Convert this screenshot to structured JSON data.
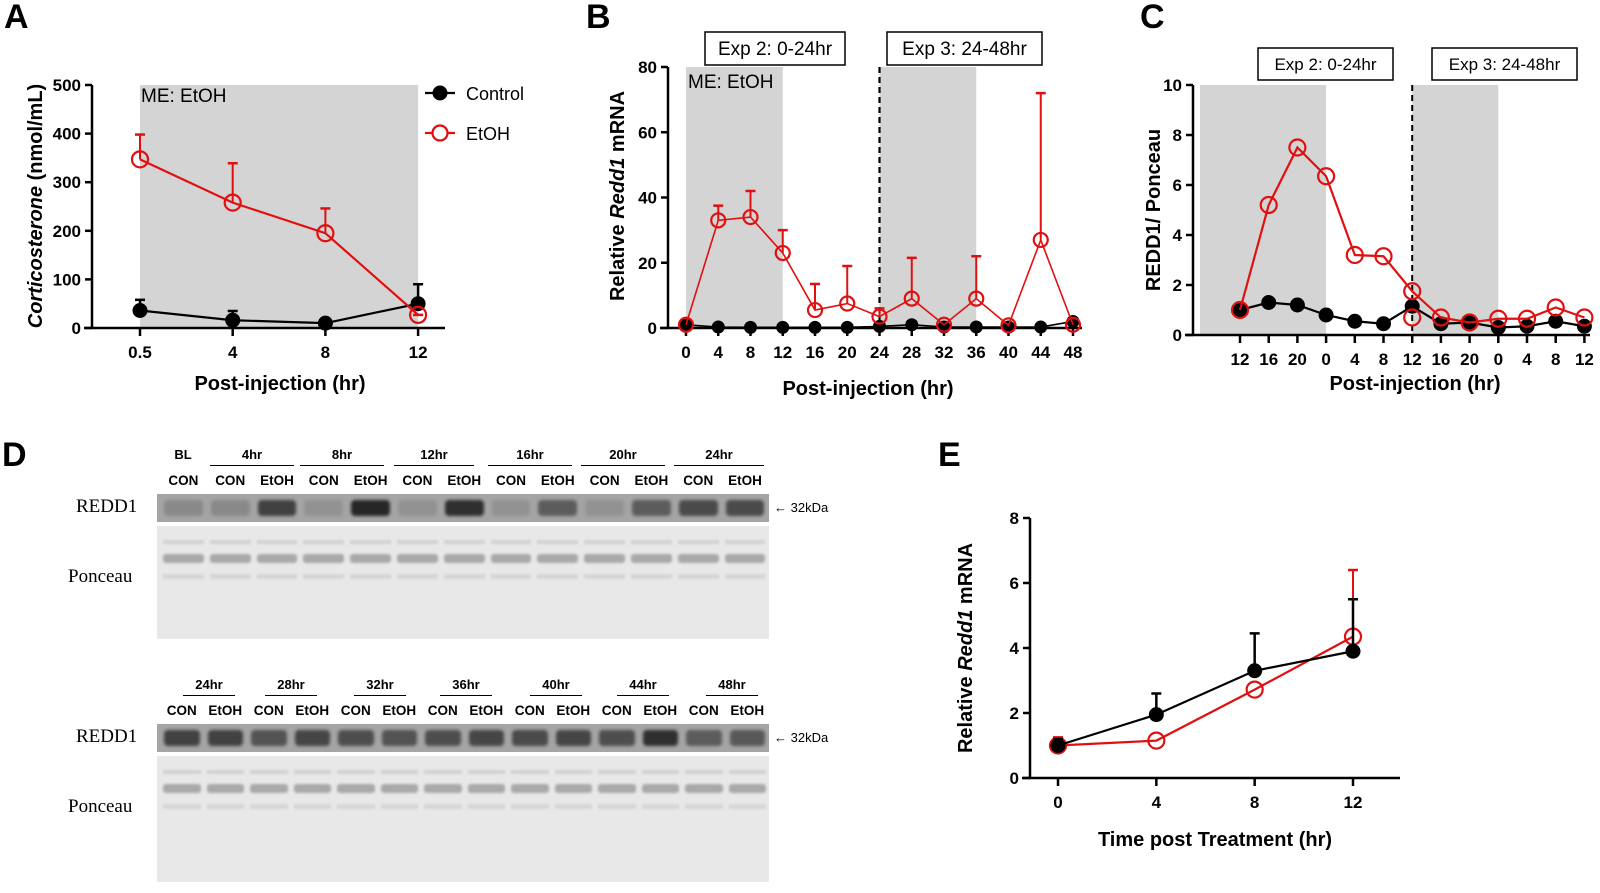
{
  "figure": {
    "panel_letters": [
      "A",
      "B",
      "C",
      "D",
      "E"
    ]
  },
  "colors": {
    "control": "#000000",
    "etoh": "#e01010",
    "shade": "#d4d4d4"
  },
  "chart_data": [
    {
      "id": "A",
      "type": "line",
      "title": "",
      "annotation": "ME: EtOH",
      "xlabel": "Post-injection (hr)",
      "ylabel_italic": "Corticosterone",
      "ylabel_rest": " (nmol/mL)",
      "categories": [
        "0.5",
        "4",
        "8",
        "12"
      ],
      "ylim": [
        0,
        500
      ],
      "yticks": [
        0,
        100,
        200,
        300,
        400,
        500
      ],
      "shaded_range_categories": [
        0,
        3
      ],
      "legend": {
        "placement": "top-right",
        "entries": [
          "Control",
          "EtOH"
        ]
      },
      "series": [
        {
          "name": "Control",
          "values": [
            36,
            16,
            10,
            50
          ],
          "error_upper": [
            58,
            35,
            12,
            90
          ],
          "marker": "filled-circle"
        },
        {
          "name": "EtOH",
          "values": [
            347,
            258,
            195,
            27
          ],
          "error_upper": [
            398,
            339,
            246,
            27
          ],
          "marker": "open-circle"
        }
      ]
    },
    {
      "id": "B",
      "type": "line",
      "annotation": "ME: EtOH",
      "boxes": [
        "Exp 2: 0-24hr",
        "Exp 3: 24-48hr"
      ],
      "xlabel": "Post-injection (hr)",
      "ylabel_pre": "Relative ",
      "ylabel_italic": "Redd1",
      "ylabel_post": " mRNA",
      "categories": [
        "0",
        "4",
        "8",
        "12",
        "16",
        "20",
        "24",
        "28",
        "32",
        "36",
        "40",
        "44",
        "48"
      ],
      "x": [
        0,
        4,
        8,
        12,
        16,
        20,
        24,
        28,
        32,
        36,
        40,
        44,
        48
      ],
      "xlim": [
        0,
        48
      ],
      "ylim": [
        0,
        80
      ],
      "yticks": [
        0,
        20,
        40,
        60,
        80
      ],
      "shaded_ranges_x": [
        [
          0,
          12
        ],
        [
          24,
          36
        ]
      ],
      "dashed_line_x": 24,
      "series": [
        {
          "name": "Control",
          "values": [
            1,
            0.3,
            0.2,
            0.2,
            0.2,
            0.2,
            0.5,
            1,
            0.3,
            0.3,
            0.3,
            0.3,
            2
          ],
          "error_upper": [
            null,
            null,
            null,
            null,
            null,
            null,
            null,
            null,
            null,
            null,
            null,
            null,
            null
          ],
          "marker": "filled-circle"
        },
        {
          "name": "EtOH",
          "values": [
            1,
            33,
            34,
            23,
            5.5,
            7.5,
            3.5,
            9,
            1,
            9,
            0.8,
            27,
            1
          ],
          "error_upper": [
            null,
            37.5,
            42,
            30,
            13.5,
            19,
            6,
            21.5,
            null,
            22,
            null,
            72,
            null
          ],
          "marker": "open-circle"
        }
      ]
    },
    {
      "id": "C",
      "type": "line",
      "boxes": [
        "Exp 2: 0-24hr",
        "Exp 3: 24-48hr"
      ],
      "xlabel": "Post-injection (hr)",
      "ylabel": "REDD1/ Ponceau",
      "categories": [
        "12",
        "16",
        "20",
        "0",
        "4",
        "8",
        "12",
        "16",
        "20",
        "0",
        "4",
        "8",
        "12"
      ],
      "ylim": [
        0,
        10
      ],
      "yticks": [
        0,
        2,
        4,
        6,
        8,
        10
      ],
      "shaded_ranges_index": [
        [
          -0.5,
          3
        ],
        [
          6,
          9
        ]
      ],
      "dashed_line_index": 6,
      "series": [
        {
          "name": "Control",
          "values": [
            1.0,
            1.3,
            1.2,
            0.8,
            0.55,
            0.45,
            1.15,
            0.45,
            0.5,
            0.3,
            0.35,
            0.55,
            0.35
          ],
          "marker": "filled-circle"
        },
        {
          "name": "EtOH",
          "values": [
            1.0,
            5.2,
            7.5,
            6.35,
            3.2,
            3.15,
            1.75,
            0.7,
            0.5,
            0.65,
            0.65,
            1.1,
            0.7
          ],
          "marker": "open-circle"
        }
      ],
      "extra_points": [
        {
          "series": "EtOH",
          "index": 6,
          "value": 0.7
        }
      ]
    },
    {
      "id": "E",
      "type": "line",
      "xlabel": "Time post Treatment (hr)",
      "ylabel_pre": "Relative ",
      "ylabel_italic": "Redd1",
      "ylabel_post": " mRNA",
      "categories": [
        "0",
        "4",
        "8",
        "12"
      ],
      "x": [
        0,
        4,
        8,
        12
      ],
      "xlim": [
        0,
        12
      ],
      "ylim": [
        0,
        8
      ],
      "yticks": [
        0,
        2,
        4,
        6,
        8
      ],
      "series": [
        {
          "name": "Control",
          "values": [
            1.0,
            1.95,
            3.3,
            3.9
          ],
          "error_upper": [
            1.2,
            2.6,
            4.45,
            5.5
          ],
          "marker": "filled-circle"
        },
        {
          "name": "EtOH",
          "values": [
            1.0,
            1.15,
            2.72,
            4.35
          ],
          "error_upper": [
            1.25,
            null,
            null,
            6.4
          ],
          "marker": "open-circle"
        }
      ]
    }
  ],
  "blots": {
    "row_labels": {
      "redd1": "REDD1",
      "ponceau": "Ponceau"
    },
    "kda_label": "← 32kDa",
    "top": {
      "time_groups": [
        "BL",
        "4hr",
        "8hr",
        "12hr",
        "16hr",
        "20hr",
        "24hr"
      ],
      "lanes": [
        "CON",
        "CON",
        "EtOH",
        "CON",
        "EtOH",
        "CON",
        "EtOH",
        "CON",
        "EtOH",
        "CON",
        "EtOH",
        "CON",
        "EtOH"
      ],
      "redd1_intensity": [
        0.35,
        0.35,
        0.75,
        0.3,
        0.9,
        0.3,
        0.85,
        0.3,
        0.6,
        0.3,
        0.6,
        0.7,
        0.7
      ]
    },
    "bottom": {
      "time_groups": [
        "24hr",
        "28hr",
        "32hr",
        "36hr",
        "40hr",
        "44hr",
        "48hr"
      ],
      "lanes": [
        "CON",
        "EtOH",
        "CON",
        "EtOH",
        "CON",
        "EtOH",
        "CON",
        "EtOH",
        "CON",
        "EtOH",
        "CON",
        "EtOH",
        "CON",
        "EtOH"
      ],
      "redd1_intensity": [
        0.75,
        0.75,
        0.65,
        0.72,
        0.68,
        0.65,
        0.68,
        0.72,
        0.7,
        0.72,
        0.68,
        0.85,
        0.6,
        0.62
      ]
    }
  }
}
